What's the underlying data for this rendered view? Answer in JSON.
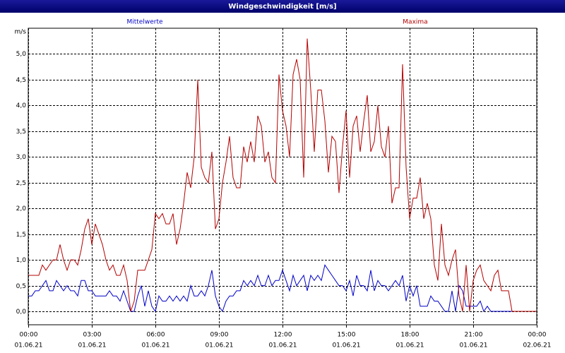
{
  "chart_data": {
    "type": "line",
    "title": "Windgeschwindigkeit [m/s]",
    "y_label": "m/s",
    "xlim": [
      0,
      1440
    ],
    "ylim": [
      -0.26,
      5.5
    ],
    "xticks": [
      {
        "value": 0,
        "label": "00:00",
        "date": "01.06.21"
      },
      {
        "value": 180,
        "label": "03:00",
        "date": "01.06.21"
      },
      {
        "value": 360,
        "label": "06:00",
        "date": "01.06.21"
      },
      {
        "value": 540,
        "label": "09:00",
        "date": "01.06.21"
      },
      {
        "value": 720,
        "label": "12:00",
        "date": "01.06.21"
      },
      {
        "value": 900,
        "label": "15:00",
        "date": "01.06.21"
      },
      {
        "value": 1080,
        "label": "18:00",
        "date": "01.06.21"
      },
      {
        "value": 1260,
        "label": "21:00",
        "date": "01.06.21"
      },
      {
        "value": 1440,
        "label": "00:00",
        "date": "02.06.21"
      }
    ],
    "yticks": [
      {
        "value": 0,
        "label": "0,0"
      },
      {
        "value": 0.5,
        "label": "0,5"
      },
      {
        "value": 1,
        "label": "1,0"
      },
      {
        "value": 1.5,
        "label": "1,5"
      },
      {
        "value": 2,
        "label": "2,0"
      },
      {
        "value": 2.5,
        "label": "2,5"
      },
      {
        "value": 3,
        "label": "3,0"
      },
      {
        "value": 3.5,
        "label": "3,5"
      },
      {
        "value": 4,
        "label": "4,0"
      },
      {
        "value": 4.5,
        "label": "4,5"
      },
      {
        "value": 5,
        "label": "5,0"
      }
    ],
    "grid": true,
    "x": [
      0,
      10,
      20,
      30,
      40,
      50,
      60,
      70,
      80,
      90,
      100,
      110,
      120,
      130,
      140,
      150,
      160,
      170,
      180,
      190,
      200,
      210,
      220,
      230,
      240,
      250,
      260,
      270,
      280,
      290,
      300,
      310,
      320,
      330,
      340,
      350,
      360,
      370,
      380,
      390,
      400,
      410,
      420,
      430,
      440,
      450,
      460,
      470,
      480,
      490,
      500,
      510,
      520,
      530,
      540,
      550,
      560,
      570,
      580,
      590,
      600,
      610,
      620,
      630,
      640,
      650,
      660,
      670,
      680,
      690,
      700,
      710,
      720,
      730,
      740,
      750,
      760,
      770,
      780,
      790,
      800,
      810,
      820,
      830,
      840,
      850,
      860,
      870,
      880,
      890,
      900,
      910,
      920,
      930,
      940,
      950,
      960,
      970,
      980,
      990,
      1000,
      1010,
      1020,
      1030,
      1040,
      1050,
      1060,
      1070,
      1080,
      1090,
      1100,
      1110,
      1120,
      1130,
      1140,
      1150,
      1160,
      1170,
      1180,
      1190,
      1200,
      1210,
      1220,
      1230,
      1240,
      1250,
      1260,
      1270,
      1280,
      1290,
      1300,
      1310,
      1320,
      1330,
      1340,
      1350,
      1360,
      1370,
      1380,
      1390,
      1400,
      1410,
      1420,
      1430,
      1440
    ],
    "series": [
      {
        "name": "Mittelwerte",
        "color": "#0000c8",
        "values": [
          0.3,
          0.3,
          0.4,
          0.4,
          0.5,
          0.6,
          0.4,
          0.4,
          0.6,
          0.5,
          0.4,
          0.5,
          0.4,
          0.4,
          0.3,
          0.6,
          0.6,
          0.4,
          0.4,
          0.3,
          0.3,
          0.3,
          0.3,
          0.4,
          0.3,
          0.3,
          0.2,
          0.4,
          0.2,
          0.0,
          0.0,
          0.3,
          0.5,
          0.1,
          0.4,
          0.1,
          0.0,
          0.3,
          0.2,
          0.2,
          0.3,
          0.2,
          0.3,
          0.2,
          0.3,
          0.2,
          0.5,
          0.3,
          0.3,
          0.4,
          0.3,
          0.5,
          0.8,
          0.3,
          0.1,
          0.0,
          0.2,
          0.3,
          0.3,
          0.4,
          0.4,
          0.6,
          0.5,
          0.6,
          0.5,
          0.7,
          0.5,
          0.5,
          0.7,
          0.5,
          0.6,
          0.6,
          0.8,
          0.6,
          0.4,
          0.7,
          0.5,
          0.6,
          0.7,
          0.4,
          0.7,
          0.6,
          0.7,
          0.6,
          0.9,
          0.8,
          0.7,
          0.6,
          0.5,
          0.5,
          0.4,
          0.6,
          0.3,
          0.7,
          0.5,
          0.5,
          0.4,
          0.8,
          0.4,
          0.6,
          0.5,
          0.5,
          0.4,
          0.5,
          0.6,
          0.5,
          0.7,
          0.2,
          0.5,
          0.3,
          0.5,
          0.1,
          0.1,
          0.1,
          0.3,
          0.2,
          0.2,
          0.1,
          0.0,
          0.0,
          0.4,
          0.0,
          0.5,
          0.4,
          0.1,
          0.1,
          0.1,
          0.1,
          0.2,
          0.0,
          0.1,
          0.0,
          0.0,
          0.0,
          0.0,
          0.0,
          0.0,
          0.0,
          0.0,
          0.0,
          0.0,
          0.0,
          0.0,
          0.0,
          0.0
        ]
      },
      {
        "name": "Maxima",
        "color": "#b40000",
        "values": [
          0.7,
          0.7,
          0.7,
          0.7,
          0.9,
          0.8,
          0.9,
          1.0,
          1.0,
          1.3,
          1.0,
          0.8,
          1.0,
          1.0,
          0.9,
          1.2,
          1.6,
          1.8,
          1.3,
          1.7,
          1.5,
          1.3,
          1.0,
          0.8,
          0.9,
          0.7,
          0.7,
          0.9,
          0.6,
          0.0,
          0.2,
          0.8,
          0.8,
          0.8,
          1.0,
          1.2,
          1.9,
          1.8,
          1.9,
          1.7,
          1.7,
          1.9,
          1.3,
          1.6,
          2.1,
          2.7,
          2.4,
          3.0,
          4.5,
          2.8,
          2.6,
          2.5,
          3.1,
          1.6,
          1.8,
          2.5,
          2.9,
          3.4,
          2.6,
          2.4,
          2.4,
          3.2,
          2.9,
          3.3,
          2.9,
          3.8,
          3.6,
          2.9,
          3.1,
          2.6,
          2.5,
          4.6,
          3.9,
          3.6,
          3.0,
          4.6,
          4.9,
          4.5,
          2.6,
          5.3,
          4.3,
          3.1,
          4.3,
          4.3,
          3.7,
          2.7,
          3.4,
          3.3,
          2.3,
          3.2,
          3.9,
          2.6,
          3.6,
          3.8,
          3.1,
          3.7,
          4.2,
          3.1,
          3.3,
          4.0,
          3.2,
          3.0,
          3.6,
          2.1,
          2.4,
          2.4,
          4.8,
          2.8,
          1.8,
          2.2,
          2.2,
          2.6,
          1.8,
          2.1,
          1.8,
          0.9,
          0.6,
          1.7,
          0.9,
          0.7,
          1.0,
          1.2,
          0.3,
          0.0,
          0.9,
          0.0,
          0.6,
          0.8,
          0.9,
          0.6,
          0.5,
          0.4,
          0.7,
          0.8,
          0.4,
          0.4,
          0.4,
          0.0,
          0.0,
          0.0,
          0.0,
          0.0,
          0.0,
          0.0,
          0.0
        ]
      }
    ]
  }
}
